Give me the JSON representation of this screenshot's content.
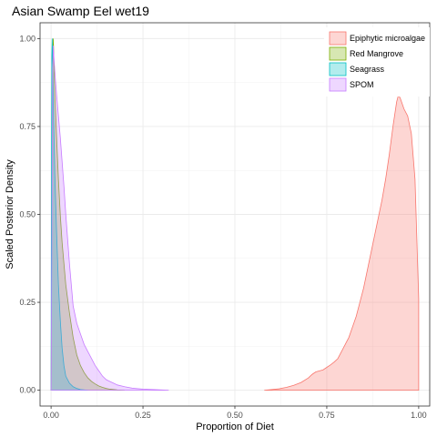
{
  "chart_data": {
    "type": "area",
    "title": "Asian Swamp Eel wet19",
    "xlabel": "Proportion of Diet",
    "ylabel": "Scaled Posterior Density",
    "xlim": [
      -0.03,
      1.03
    ],
    "ylim": [
      -0.045,
      1.045
    ],
    "x_ticks": [
      0.0,
      0.25,
      0.5,
      0.75,
      1.0
    ],
    "x_tick_labels": [
      "0.00",
      "0.25",
      "0.50",
      "0.75",
      "1.00"
    ],
    "y_ticks": [
      0.0,
      0.25,
      0.5,
      0.75,
      1.0
    ],
    "y_tick_labels": [
      "0.00",
      "0.25",
      "0.50",
      "0.75",
      "1.00"
    ],
    "grid": true,
    "legend_position": "top-right, inside",
    "series": [
      {
        "name": "Epiphytic microalgae",
        "fill": "#F8766D",
        "points": [
          [
            0.58,
            0.0
          ],
          [
            0.6,
            0.002
          ],
          [
            0.62,
            0.004
          ],
          [
            0.64,
            0.008
          ],
          [
            0.66,
            0.014
          ],
          [
            0.68,
            0.022
          ],
          [
            0.7,
            0.035
          ],
          [
            0.71,
            0.045
          ],
          [
            0.72,
            0.052
          ],
          [
            0.73,
            0.055
          ],
          [
            0.74,
            0.058
          ],
          [
            0.75,
            0.065
          ],
          [
            0.76,
            0.072
          ],
          [
            0.77,
            0.08
          ],
          [
            0.78,
            0.09
          ],
          [
            0.79,
            0.11
          ],
          [
            0.8,
            0.13
          ],
          [
            0.81,
            0.15
          ],
          [
            0.82,
            0.18
          ],
          [
            0.83,
            0.21
          ],
          [
            0.84,
            0.25
          ],
          [
            0.85,
            0.29
          ],
          [
            0.86,
            0.34
          ],
          [
            0.87,
            0.39
          ],
          [
            0.88,
            0.44
          ],
          [
            0.89,
            0.49
          ],
          [
            0.9,
            0.54
          ],
          [
            0.91,
            0.6
          ],
          [
            0.92,
            0.67
          ],
          [
            0.93,
            0.75
          ],
          [
            0.94,
            0.82
          ],
          [
            0.945,
            0.84
          ],
          [
            0.95,
            0.83
          ],
          [
            0.96,
            0.8
          ],
          [
            0.97,
            0.78
          ],
          [
            0.98,
            0.73
          ],
          [
            0.99,
            0.6
          ],
          [
            1.0,
            0.26
          ]
        ]
      },
      {
        "name": "Red Mangrove",
        "fill": "#7CAE00",
        "points": [
          [
            0.0,
            0.0
          ],
          [
            0.002,
            0.5
          ],
          [
            0.004,
            0.9
          ],
          [
            0.006,
            1.0
          ],
          [
            0.01,
            0.85
          ],
          [
            0.015,
            0.72
          ],
          [
            0.02,
            0.6
          ],
          [
            0.025,
            0.5
          ],
          [
            0.03,
            0.42
          ],
          [
            0.04,
            0.3
          ],
          [
            0.05,
            0.22
          ],
          [
            0.06,
            0.15
          ],
          [
            0.07,
            0.1
          ],
          [
            0.08,
            0.07
          ],
          [
            0.09,
            0.05
          ],
          [
            0.1,
            0.035
          ],
          [
            0.11,
            0.025
          ],
          [
            0.12,
            0.018
          ],
          [
            0.13,
            0.012
          ],
          [
            0.14,
            0.008
          ],
          [
            0.15,
            0.005
          ],
          [
            0.16,
            0.003
          ],
          [
            0.18,
            0.001
          ],
          [
            0.2,
            0.0
          ]
        ]
      },
      {
        "name": "Seagrass",
        "fill": "#00BFC4",
        "points": [
          [
            0.0,
            0.0
          ],
          [
            0.001,
            0.6
          ],
          [
            0.002,
            0.95
          ],
          [
            0.003,
            1.0
          ],
          [
            0.006,
            0.82
          ],
          [
            0.01,
            0.62
          ],
          [
            0.015,
            0.45
          ],
          [
            0.02,
            0.3
          ],
          [
            0.025,
            0.2
          ],
          [
            0.03,
            0.12
          ],
          [
            0.035,
            0.07
          ],
          [
            0.04,
            0.04
          ],
          [
            0.05,
            0.02
          ],
          [
            0.06,
            0.01
          ],
          [
            0.07,
            0.005
          ],
          [
            0.08,
            0.002
          ],
          [
            0.09,
            0.001
          ],
          [
            0.1,
            0.0
          ]
        ]
      },
      {
        "name": "SPOM",
        "fill": "#C77CFF",
        "points": [
          [
            0.0,
            0.0
          ],
          [
            0.002,
            0.4
          ],
          [
            0.004,
            0.9
          ],
          [
            0.006,
            0.98
          ],
          [
            0.008,
            0.94
          ],
          [
            0.012,
            0.88
          ],
          [
            0.015,
            0.84
          ],
          [
            0.02,
            0.78
          ],
          [
            0.025,
            0.72
          ],
          [
            0.03,
            0.65
          ],
          [
            0.035,
            0.58
          ],
          [
            0.04,
            0.5
          ],
          [
            0.045,
            0.43
          ],
          [
            0.05,
            0.36
          ],
          [
            0.055,
            0.3
          ],
          [
            0.06,
            0.24
          ],
          [
            0.07,
            0.19
          ],
          [
            0.08,
            0.16
          ],
          [
            0.09,
            0.13
          ],
          [
            0.1,
            0.11
          ],
          [
            0.11,
            0.09
          ],
          [
            0.12,
            0.07
          ],
          [
            0.13,
            0.055
          ],
          [
            0.14,
            0.04
          ],
          [
            0.15,
            0.03
          ],
          [
            0.16,
            0.025
          ],
          [
            0.17,
            0.02
          ],
          [
            0.18,
            0.015
          ],
          [
            0.2,
            0.01
          ],
          [
            0.22,
            0.006
          ],
          [
            0.25,
            0.003
          ],
          [
            0.28,
            0.002
          ],
          [
            0.3,
            0.001
          ],
          [
            0.32,
            0.0
          ]
        ]
      }
    ]
  }
}
